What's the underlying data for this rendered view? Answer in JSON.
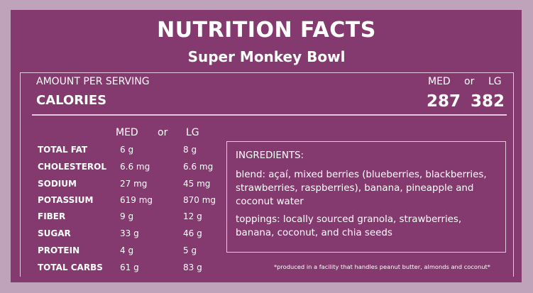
{
  "title": "NUTRITION FACTS",
  "subtitle": "Super Monkey Bowl",
  "serving": {
    "amount_label": "AMOUNT PER SERVING",
    "calories_label": "CALORIES",
    "size_med": "MED",
    "size_or": "or",
    "size_lg": "LG",
    "calories_med": "287",
    "calories_lg": "382"
  },
  "columns": {
    "med": "MED",
    "or": "or",
    "lg": "LG"
  },
  "nutrients": [
    {
      "name": "TOTAL FAT",
      "med": "6 g",
      "lg": "8 g"
    },
    {
      "name": "CHOLESTEROL",
      "med": "6.6 mg",
      "lg": "6.6 mg"
    },
    {
      "name": "SODIUM",
      "med": "27 mg",
      "lg": "45 mg"
    },
    {
      "name": "POTASSIUM",
      "med": "619 mg",
      "lg": "870 mg"
    },
    {
      "name": "FIBER",
      "med": "9 g",
      "lg": "12 g"
    },
    {
      "name": "SUGAR",
      "med": "33 g",
      "lg": "46 g"
    },
    {
      "name": "PROTEIN",
      "med": "4 g",
      "lg": "5 g"
    },
    {
      "name": "TOTAL CARBS",
      "med": "61 g",
      "lg": "83 g"
    }
  ],
  "ingredients": {
    "heading": "INGREDIENTS:",
    "blend": "blend: açaí, mixed berries (blueberries, blackberries, strawberries, raspberries), banana, pineapple and coconut water",
    "toppings": "toppings: locally sourced granola, strawberries, banana, coconut, and chia seeds"
  },
  "footnote": "*produced in a facility that handles peanut butter, almonds and coconut*",
  "colors": {
    "background": "#843a6e",
    "outer": "#bfa3bb",
    "text": "#ffffff",
    "rule": "#e6c9df"
  }
}
